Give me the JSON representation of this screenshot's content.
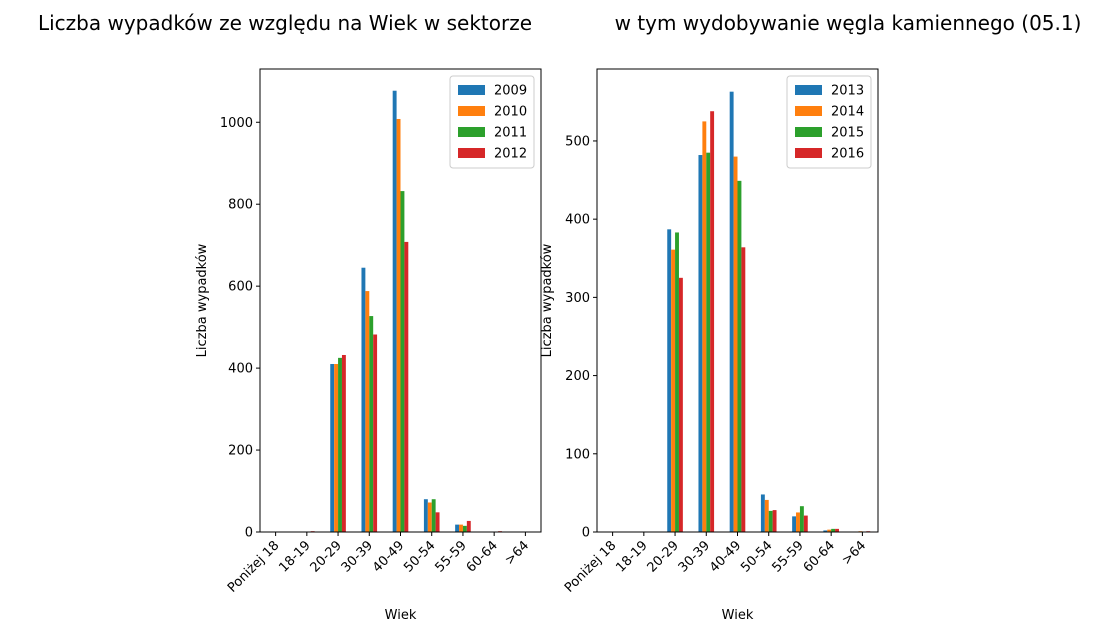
{
  "title_left": "Liczba wypadków ze względu na Wiek w sektorze",
  "title_right": "w tym wydobywanie węgla kamiennego (05.1)",
  "colors": [
    "#1f77b4",
    "#ff7f0e",
    "#2ca02c",
    "#d62728"
  ],
  "chart_data": [
    {
      "type": "bar",
      "xlabel": "Wiek",
      "ylabel": "Liczba wypadków",
      "categories": [
        "Poniżej 18",
        "18-19",
        "20-29",
        "30-39",
        "40-49",
        "50-54",
        "55-59",
        "60-64",
        ">64"
      ],
      "ylim": [
        0,
        1130
      ],
      "yticks": [
        0,
        200,
        400,
        600,
        800,
        1000
      ],
      "legend": "top-right",
      "series": [
        {
          "name": "2009",
          "values": [
            0,
            0,
            410,
            645,
            1077,
            80,
            18,
            0,
            0
          ]
        },
        {
          "name": "2010",
          "values": [
            0,
            0,
            410,
            588,
            1008,
            72,
            18,
            0,
            0
          ]
        },
        {
          "name": "2011",
          "values": [
            0,
            0,
            425,
            527,
            832,
            80,
            15,
            0,
            0
          ]
        },
        {
          "name": "2012",
          "values": [
            0,
            2,
            432,
            482,
            708,
            48,
            27,
            2,
            0
          ]
        }
      ]
    },
    {
      "type": "bar",
      "xlabel": "Wiek",
      "ylabel": "Liczba wypadków",
      "categories": [
        "Poniżej 18",
        "18-19",
        "20-29",
        "30-39",
        "40-49",
        "50-54",
        "55-59",
        "60-64",
        ">64"
      ],
      "ylim": [
        0,
        592
      ],
      "yticks": [
        0,
        100,
        200,
        300,
        400,
        500
      ],
      "legend": "top-right",
      "series": [
        {
          "name": "2013",
          "values": [
            0,
            0,
            387,
            482,
            563,
            48,
            20,
            2,
            0
          ]
        },
        {
          "name": "2014",
          "values": [
            0,
            0,
            361,
            525,
            480,
            41,
            25,
            3,
            1
          ]
        },
        {
          "name": "2015",
          "values": [
            0,
            0,
            383,
            485,
            449,
            27,
            33,
            4,
            0
          ]
        },
        {
          "name": "2016",
          "values": [
            0,
            0,
            325,
            538,
            364,
            28,
            21,
            4,
            1
          ]
        }
      ]
    }
  ]
}
